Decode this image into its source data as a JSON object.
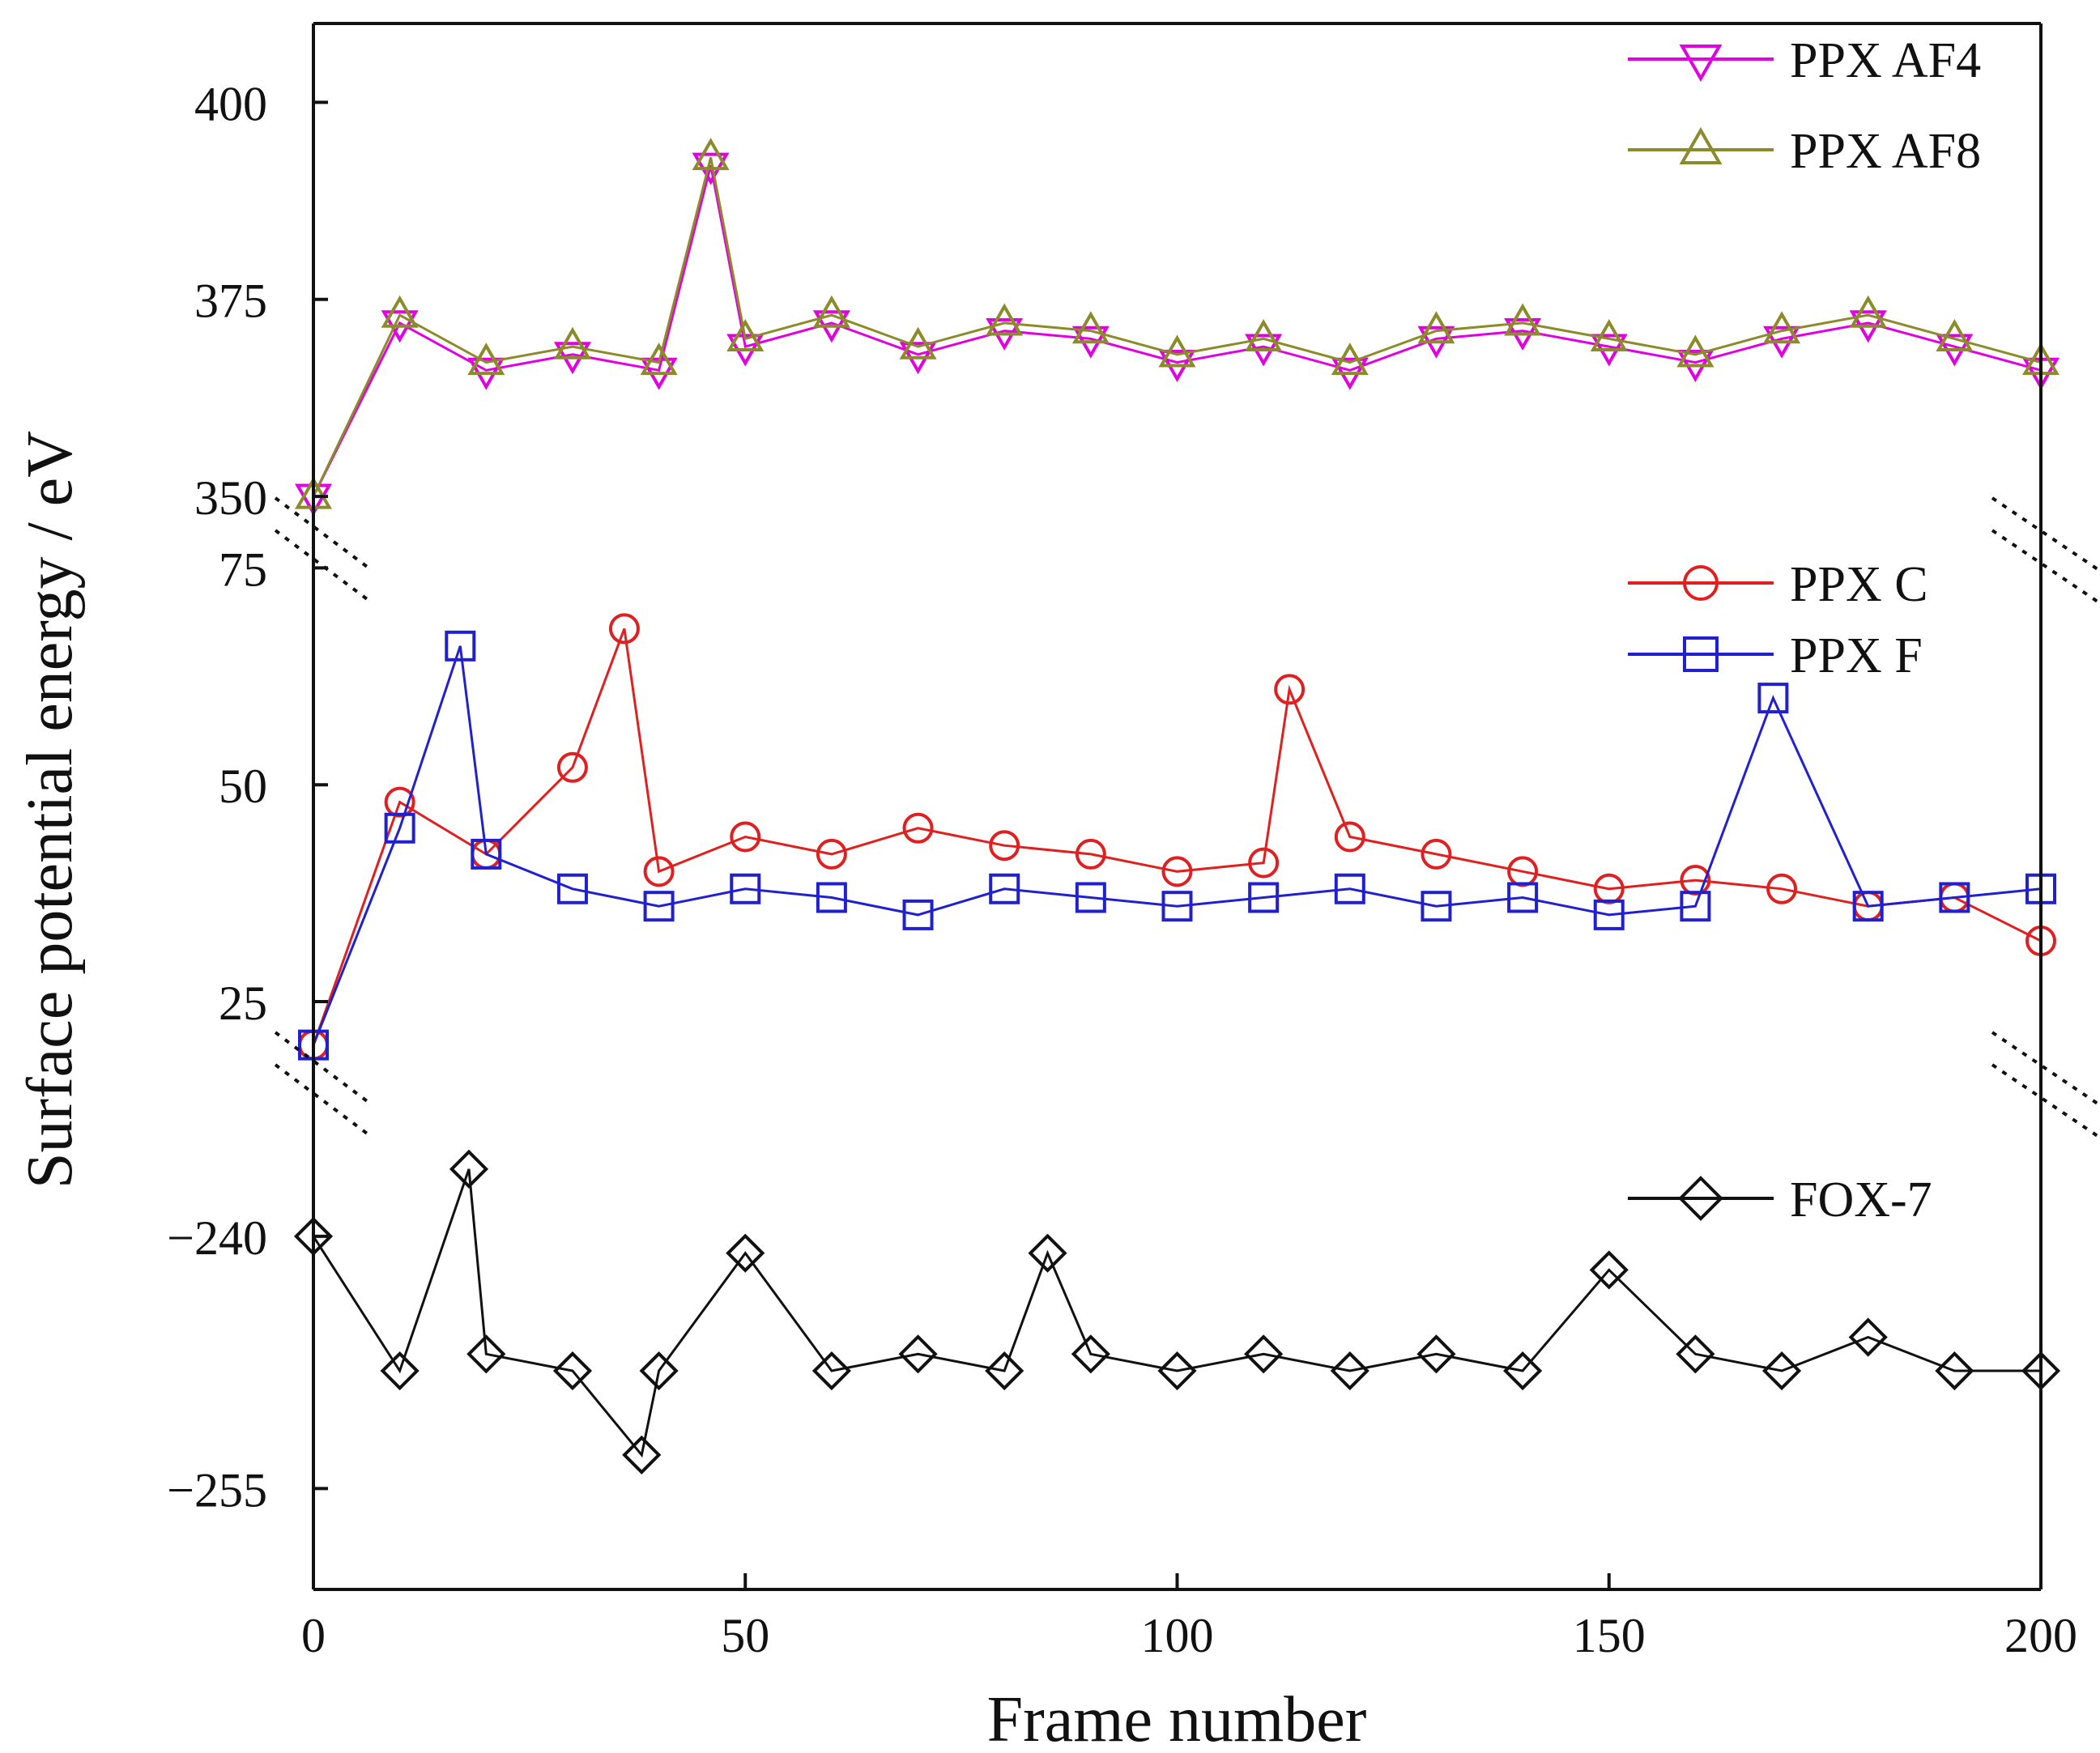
{
  "chart_data": {
    "type": "line",
    "title": "",
    "xlabel": "Frame number",
    "ylabel": "Surface potential energy / eV",
    "xlim": [
      0,
      200
    ],
    "x_ticks": [
      "0",
      "50",
      "100",
      "150",
      "200"
    ],
    "layout": "three broken y-axis panels sharing the x axis",
    "panels": [
      {
        "name": "top",
        "ylim": [
          346,
          410
        ],
        "y_ticks": [
          "350",
          "375",
          "400"
        ],
        "series": [
          {
            "name": "PPX AF4",
            "marker": "triangle-down",
            "color": "#e000e0",
            "x": [
              0,
              10,
              20,
              30,
              40,
              46,
              50,
              60,
              70,
              80,
              90,
              100,
              110,
              120,
              130,
              140,
              150,
              160,
              170,
              180,
              190,
              200
            ],
            "values": [
              350,
              372,
              366,
              368,
              366,
              392,
              369,
              372,
              368,
              371,
              370,
              367,
              369,
              366,
              370,
              371,
              369,
              367,
              370,
              372,
              369,
              366
            ]
          },
          {
            "name": "PPX AF8",
            "marker": "triangle-up",
            "color": "#8b8b2a",
            "x": [
              0,
              10,
              20,
              30,
              40,
              46,
              50,
              60,
              70,
              80,
              90,
              100,
              110,
              120,
              130,
              140,
              150,
              160,
              170,
              180,
              190,
              200
            ],
            "values": [
              350,
              373,
              367,
              369,
              367,
              393,
              370,
              373,
              369,
              372,
              371,
              368,
              370,
              367,
              371,
              372,
              370,
              368,
              371,
              373,
              370,
              367
            ]
          }
        ]
      },
      {
        "name": "middle",
        "ylim": [
          18,
          77
        ],
        "y_ticks": [
          "25",
          "50",
          "75"
        ],
        "series": [
          {
            "name": "PPX C",
            "marker": "circle",
            "color": "#e02020",
            "x": [
              0,
              10,
              20,
              30,
              36,
              40,
              50,
              60,
              70,
              80,
              90,
              100,
              110,
              113,
              120,
              130,
              140,
              150,
              160,
              170,
              180,
              190,
              200
            ],
            "values": [
              20,
              48,
              42,
              52,
              68,
              40,
              44,
              42,
              45,
              43,
              42,
              40,
              41,
              61,
              44,
              42,
              40,
              38,
              39,
              38,
              36,
              37,
              32
            ]
          },
          {
            "name": "PPX F",
            "marker": "square",
            "color": "#2020d0",
            "x": [
              0,
              10,
              17,
              20,
              30,
              40,
              50,
              60,
              70,
              80,
              90,
              100,
              110,
              120,
              130,
              140,
              150,
              160,
              169,
              180,
              190,
              200
            ],
            "values": [
              20,
              45,
              66,
              42,
              38,
              36,
              38,
              37,
              35,
              38,
              37,
              36,
              37,
              38,
              36,
              37,
              35,
              36,
              60,
              36,
              37,
              38
            ]
          }
        ]
      },
      {
        "name": "bottom",
        "ylim": [
          -261,
          -231
        ],
        "y_ticks": [
          "−240",
          "−255"
        ],
        "series": [
          {
            "name": "FOX-7",
            "marker": "diamond",
            "color": "#111111",
            "x": [
              0,
              10,
              18,
              20,
              30,
              38,
              40,
              50,
              60,
              70,
              80,
              85,
              90,
              100,
              110,
              120,
              130,
              140,
              150,
              160,
              170,
              180,
              190,
              200
            ],
            "values": [
              -240,
              -248,
              -236,
              -247,
              -248,
              -253,
              -248,
              -241,
              -248,
              -247,
              -248,
              -241,
              -247,
              -248,
              -247,
              -248,
              -247,
              -248,
              -242,
              -247,
              -248,
              -246,
              -248,
              -248
            ]
          }
        ]
      }
    ],
    "legend": [
      {
        "label": "PPX AF4",
        "panel": "top",
        "position": "top-right"
      },
      {
        "label": "PPX AF8",
        "panel": "top",
        "position": "top-right"
      },
      {
        "label": "PPX C",
        "panel": "middle",
        "position": "top-right"
      },
      {
        "label": "PPX F",
        "panel": "middle",
        "position": "top-right"
      },
      {
        "label": "FOX-7",
        "panel": "bottom",
        "position": "top-right"
      }
    ]
  }
}
